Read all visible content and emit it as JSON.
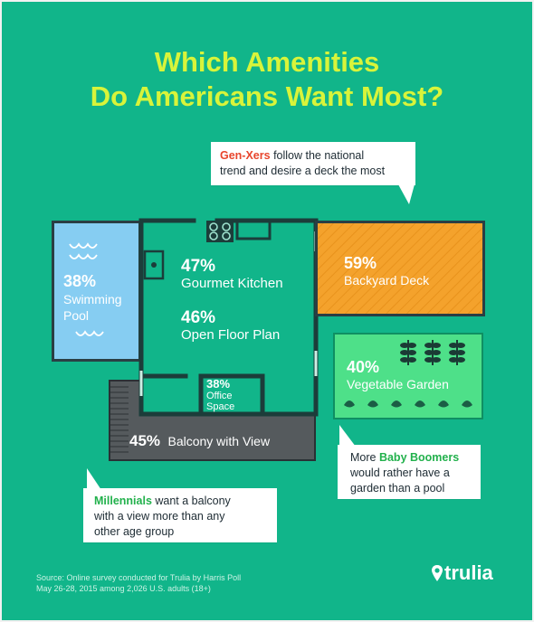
{
  "title": {
    "line1": "Which Amenities",
    "line2": "Do Americans Want Most?"
  },
  "callouts": {
    "genx": {
      "highlight": "Gen-Xers",
      "rest1": " follow the national",
      "line2": "trend and desire a deck the most",
      "highlight_color": "#e8452c"
    },
    "boomers": {
      "line1_pre": "More ",
      "highlight": "Baby Boomers",
      "line2": "would rather have a",
      "line3": "garden than a pool",
      "highlight_color": "#22b14c"
    },
    "millennials": {
      "highlight": "Millennials",
      "rest1": " want a balcony",
      "line2": "with a view more than any",
      "line3": "other age group",
      "highlight_color": "#22b14c"
    }
  },
  "amenities": {
    "pool": {
      "pct": "38%",
      "label1": "Swimming",
      "label2": "Pool",
      "color": "#86cdf2"
    },
    "kitchen": {
      "pct": "47%",
      "label": "Gourmet Kitchen"
    },
    "floor_plan": {
      "pct": "46%",
      "label": "Open Floor Plan"
    },
    "office": {
      "pct": "38%",
      "label1": "Office",
      "label2": "Space"
    },
    "deck": {
      "pct": "59%",
      "label": "Backyard Deck",
      "color": "#f4a22c"
    },
    "garden": {
      "pct": "40%",
      "label": "Vegetable Garden",
      "color": "#4ee089"
    },
    "balcony": {
      "pct": "45%",
      "label": "Balcony with View",
      "color": "#555a5d"
    }
  },
  "source": {
    "line1": "Source: Online survey conducted for Trulia by Harris Poll",
    "line2": "May 26-28, 2015 among 2,026 U.S. adults (18+)"
  },
  "brand": {
    "name": "trulia",
    "icon": "location-pin-icon"
  },
  "colors": {
    "background": "#11b58a",
    "title": "#d8f43a",
    "wall": "#1c3d3a"
  }
}
